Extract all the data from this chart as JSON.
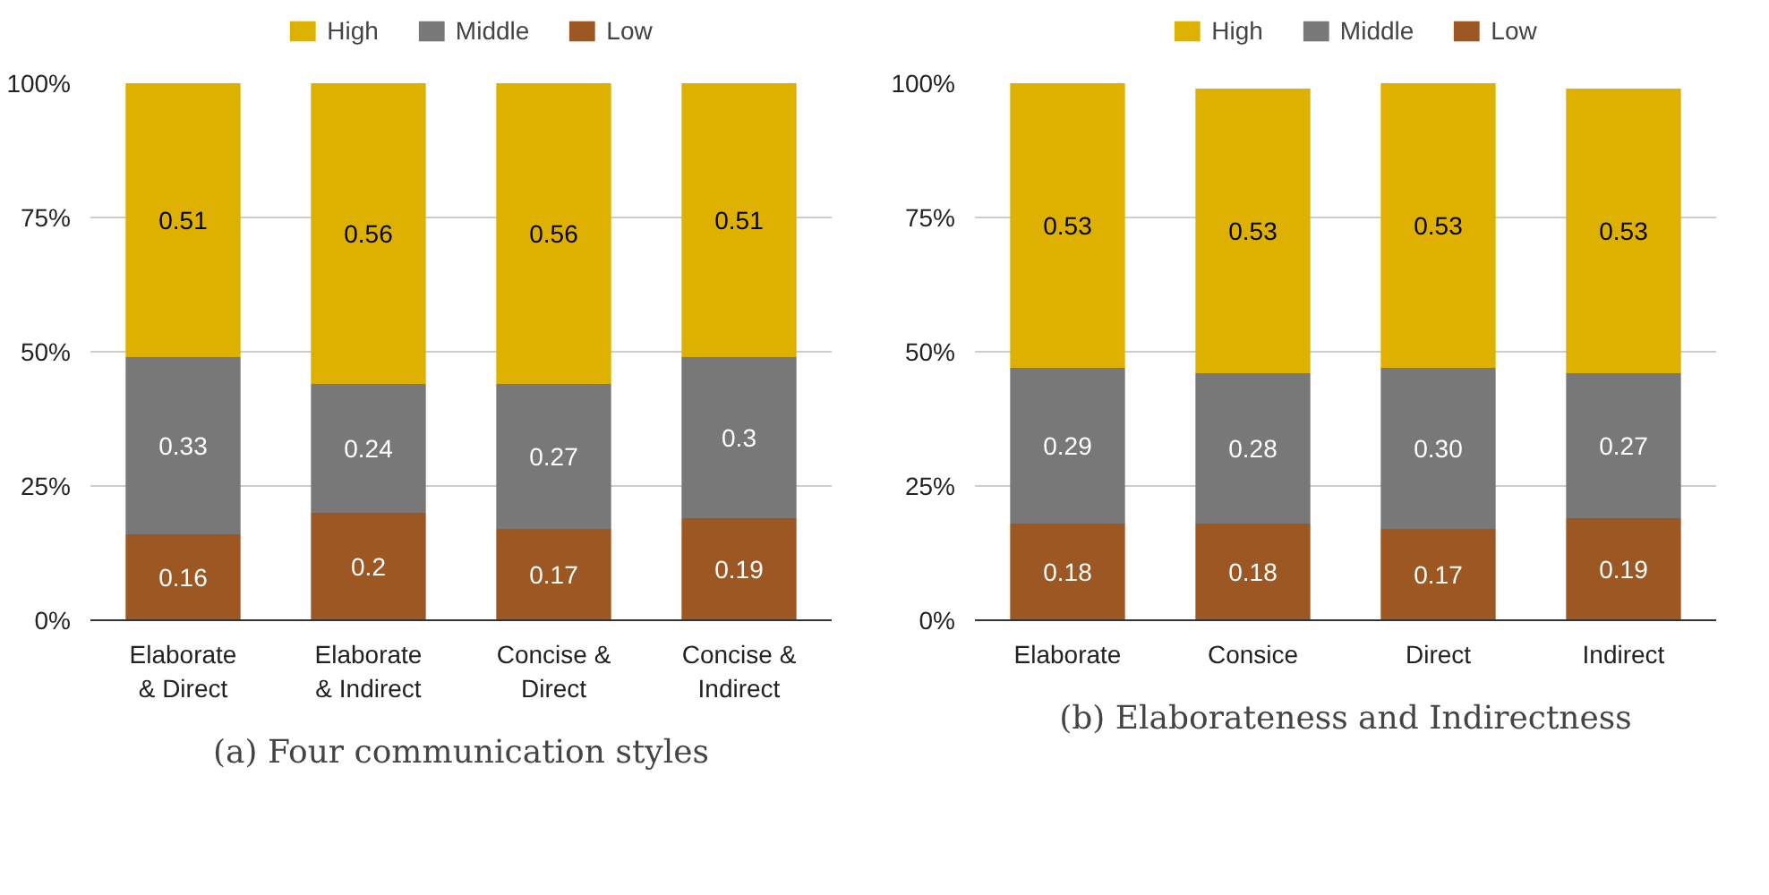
{
  "chart_data": [
    {
      "type": "bar",
      "title": "(a) Four communication styles",
      "stacked": true,
      "legend": "top",
      "grid": "y",
      "categories": [
        "Elaborate\n& Direct",
        "Elaborate\n& Indirect",
        "Concise &\nDirect",
        "Concise &\nIndirect"
      ],
      "ylim": [
        0,
        1
      ],
      "yticks": [
        {
          "value": 0,
          "label": "0%"
        },
        {
          "value": 0.25,
          "label": "25%"
        },
        {
          "value": 0.5,
          "label": "50%"
        },
        {
          "value": 0.75,
          "label": "75%"
        },
        {
          "value": 1,
          "label": "100%"
        }
      ],
      "series": [
        {
          "name": "Low",
          "color": "#9c5723",
          "values": [
            0.16,
            0.2,
            0.17,
            0.19
          ],
          "value_labels": [
            "0.16",
            "0.2",
            "0.17",
            "0.19"
          ]
        },
        {
          "name": "Middle",
          "color": "#787878",
          "values": [
            0.33,
            0.24,
            0.27,
            0.3
          ],
          "value_labels": [
            "0.33",
            "0.24",
            "0.27",
            "0.3"
          ]
        },
        {
          "name": "High",
          "color": "#deb100",
          "values": [
            0.51,
            0.56,
            0.56,
            0.51
          ],
          "value_labels": [
            "0.51",
            "0.56",
            "0.56",
            "0.51"
          ]
        }
      ]
    },
    {
      "type": "bar",
      "title": "(b) Elaborateness and Indirectness",
      "stacked": true,
      "legend": "top",
      "grid": "y",
      "categories": [
        "Elaborate",
        "Consice",
        "Direct",
        "Indirect"
      ],
      "ylim": [
        0,
        1
      ],
      "yticks": [
        {
          "value": 0,
          "label": "0%"
        },
        {
          "value": 0.25,
          "label": "25%"
        },
        {
          "value": 0.5,
          "label": "50%"
        },
        {
          "value": 0.75,
          "label": "75%"
        },
        {
          "value": 1,
          "label": "100%"
        }
      ],
      "series": [
        {
          "name": "Low",
          "color": "#9c5723",
          "values": [
            0.18,
            0.18,
            0.17,
            0.19
          ],
          "value_labels": [
            "0.18",
            "0.18",
            "0.17",
            "0.19"
          ]
        },
        {
          "name": "Middle",
          "color": "#787878",
          "values": [
            0.29,
            0.28,
            0.3,
            0.27
          ],
          "value_labels": [
            "0.29",
            "0.28",
            "0.30",
            "0.27"
          ]
        },
        {
          "name": "High",
          "color": "#deb100",
          "values": [
            0.53,
            0.53,
            0.53,
            0.53
          ],
          "value_labels": [
            "0.53",
            "0.53",
            "0.53",
            "0.53"
          ]
        }
      ]
    }
  ]
}
